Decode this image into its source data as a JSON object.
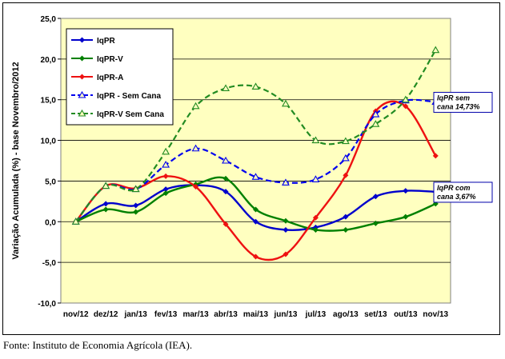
{
  "chart_data": {
    "type": "line",
    "ylabel": "Variação Acumulada (%) - base Novembro/2012",
    "ylim": [
      -10,
      25
    ],
    "yticks": [
      "25,0",
      "20,0",
      "15,0",
      "10,0",
      "5,0",
      "0,0",
      "-5,0",
      "-10,0"
    ],
    "ytick_values": [
      25,
      20,
      15,
      10,
      5,
      0,
      -5,
      -10
    ],
    "categories": [
      "nov/12",
      "dez/12",
      "jan/13",
      "fev/13",
      "mar/13",
      "abr/13",
      "mai/13",
      "jun/13",
      "jul/13",
      "ago/13",
      "set/13",
      "out/13",
      "nov/13"
    ],
    "grid": "horizontal",
    "legend_position": "top-left",
    "series": [
      {
        "name": "IqPR",
        "color": "#0000cc",
        "dash": "solid",
        "marker": "diamond",
        "values": [
          0,
          2.2,
          2.0,
          4.0,
          4.5,
          3.7,
          0,
          -1.0,
          -0.7,
          0.6,
          3.1,
          3.8,
          3.67
        ]
      },
      {
        "name": "IqPR-V",
        "color": "#008000",
        "dash": "solid",
        "marker": "diamond",
        "values": [
          0,
          1.5,
          1.2,
          3.5,
          4.6,
          5.3,
          1.5,
          0.1,
          -1.0,
          -1.0,
          -0.2,
          0.6,
          2.2
        ]
      },
      {
        "name": "IqPR-A",
        "color": "#ee1111",
        "dash": "solid",
        "marker": "diamond",
        "values": [
          0,
          4.4,
          4.1,
          5.6,
          4.3,
          -0.3,
          -4.3,
          -4.0,
          0.5,
          5.7,
          13.6,
          14.2,
          8.1
        ]
      },
      {
        "name": "IqPR - Sem Cana",
        "color": "#0000ee",
        "dash": "dashed",
        "marker": "triangle",
        "values": [
          0,
          4.4,
          4.0,
          7.0,
          9.0,
          7.5,
          5.5,
          4.8,
          5.2,
          7.8,
          13.2,
          14.9,
          14.73
        ]
      },
      {
        "name": "IqPR-V Sem Cana",
        "color": "#228b22",
        "dash": "dashed",
        "marker": "triangle",
        "values": [
          0,
          4.4,
          4.0,
          8.6,
          14.2,
          16.4,
          16.6,
          14.5,
          10.0,
          9.9,
          12.0,
          15.0,
          21.1
        ]
      }
    ],
    "annotations": [
      {
        "line1": "IqPR sem",
        "line2": "cana 14,73%",
        "series": 3
      },
      {
        "line1": "IqPR com",
        "line2": "cana 3,67%",
        "series": 0
      }
    ]
  },
  "source": "Fonte: Instituto de Economia Agrícola (IEA)."
}
